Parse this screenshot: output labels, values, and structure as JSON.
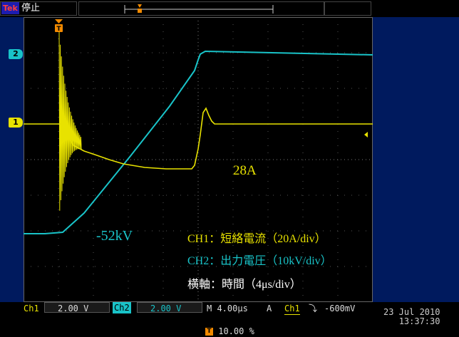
{
  "header": {
    "brand": "Tek",
    "run_state": "停止"
  },
  "markers": {
    "ch1": "1",
    "ch2": "2",
    "trigger": "T"
  },
  "annotations": {
    "current_peak": "28A",
    "voltage_min": "-52kV",
    "ch1_legend": "CH1：短絡電流（20A/div）",
    "ch2_legend": "CH2：出力電圧（10kV/div）",
    "h_axis": "横軸：時間（4μs/div）"
  },
  "status_bar": {
    "ch1_label": "Ch1",
    "ch1_scale": "2.00 V",
    "ch2_label": "Ch2",
    "ch2_scale": "2.00 V",
    "timebase": "M 4.00µs",
    "acq_mode": "A",
    "trig_source": "Ch1",
    "trig_slope": "⤵",
    "trig_level": "-600mV",
    "trigger_position": "10.00 %",
    "date": "23 Jul  2010",
    "time": "13:37:30"
  },
  "colors": {
    "ch1": "#e8e200",
    "ch2": "#19c3c8",
    "background": "#000000",
    "frame": "#001a5e"
  }
}
